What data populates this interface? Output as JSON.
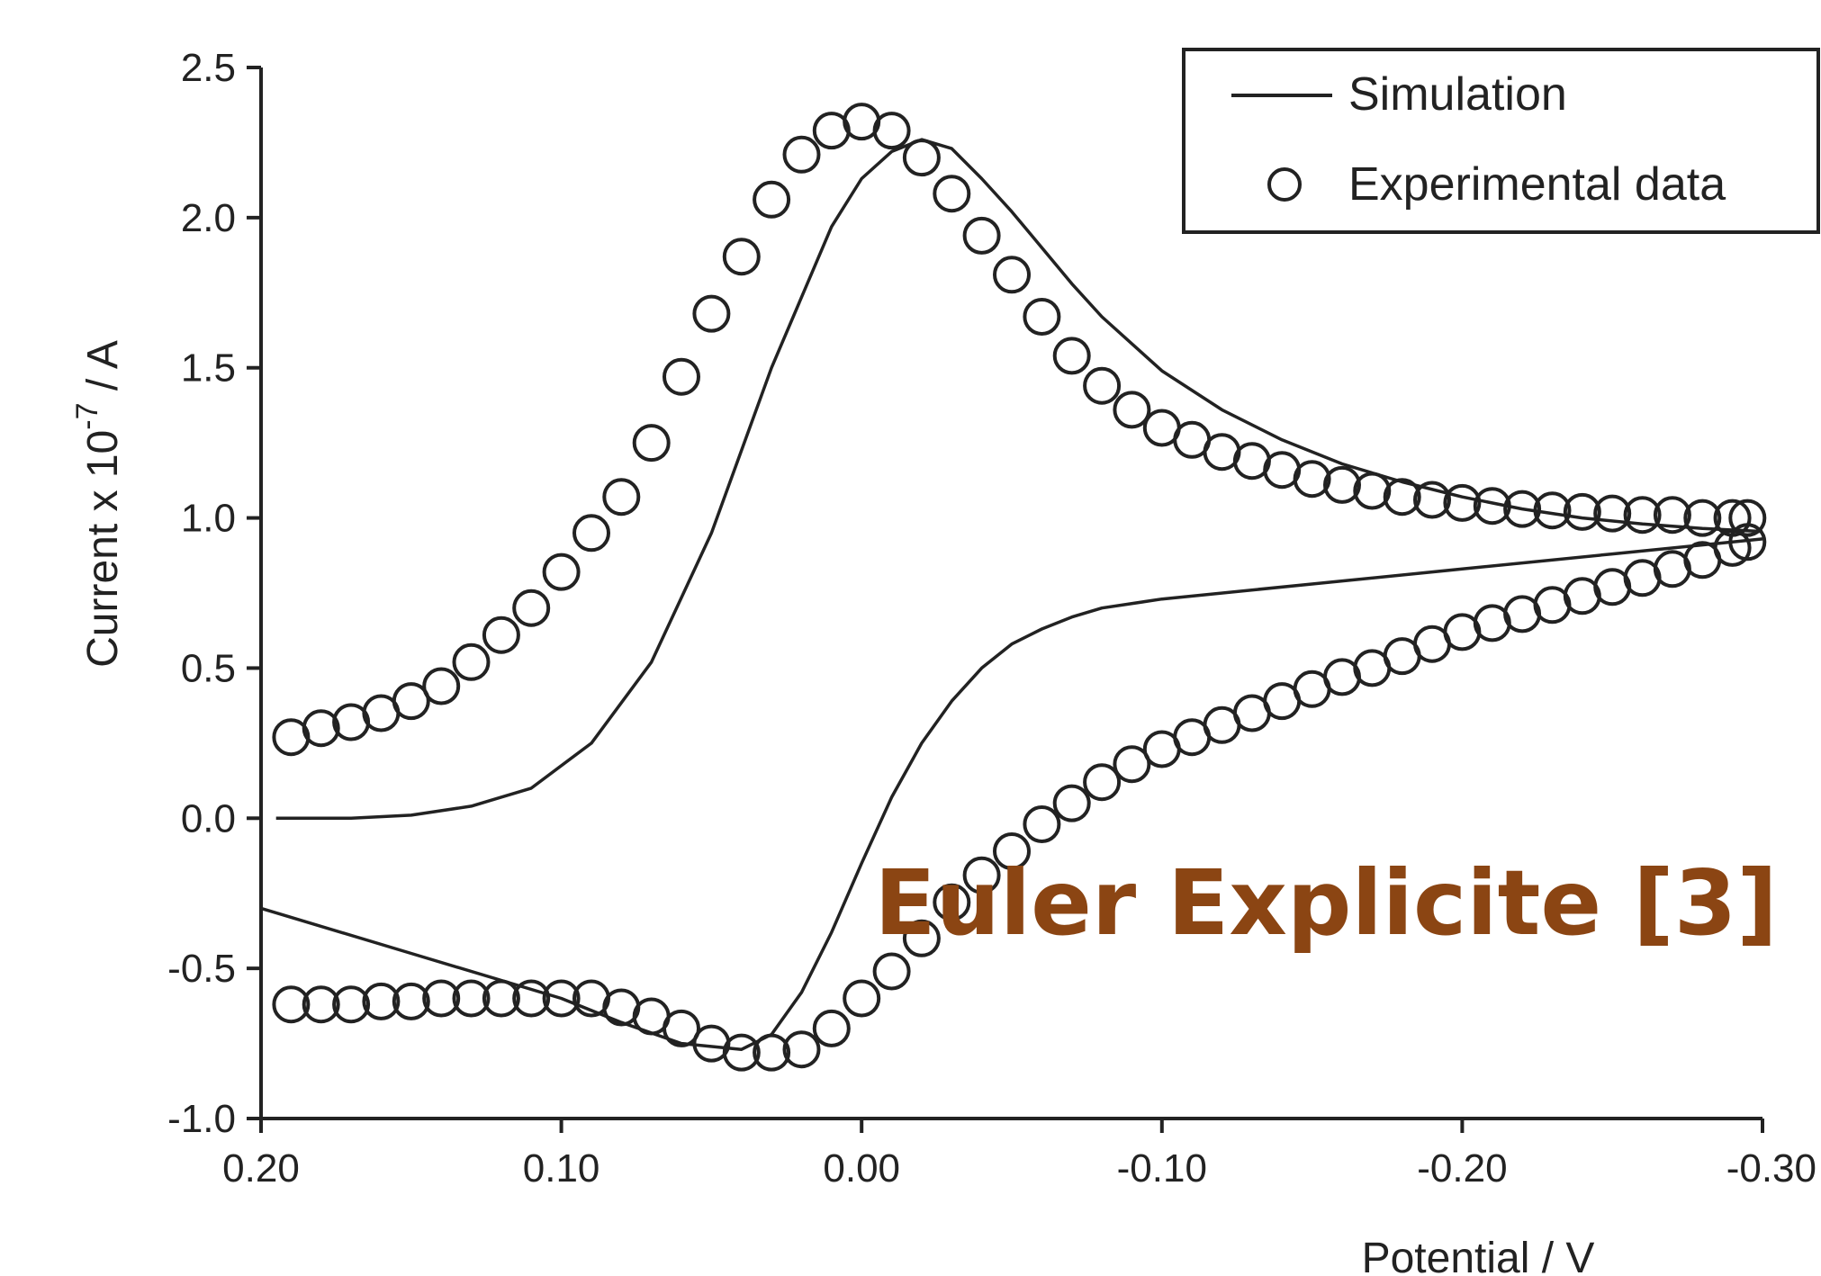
{
  "chart_data": {
    "type": "scatter",
    "xlabel": "Potential / V",
    "ylabel_prefix": "Current x 10",
    "ylabel_exp": "-7",
    "ylabel_suffix": " / A",
    "xlim": [
      0.2,
      -0.3
    ],
    "ylim": [
      -1.0,
      2.5
    ],
    "x_reversed": true,
    "x_ticks": [
      0.2,
      0.1,
      0.0,
      -0.1,
      -0.2,
      -0.3
    ],
    "x_tick_labels": [
      "0.20",
      "0.10",
      "0.00",
      "-0.10",
      "-0.20",
      "-0.30"
    ],
    "y_ticks": [
      -1.0,
      -0.5,
      0.0,
      0.5,
      1.0,
      1.5,
      2.0,
      2.5
    ],
    "y_tick_labels": [
      "-1.0",
      "-0.5",
      "0.0",
      "0.5",
      "1.0",
      "1.5",
      "2.0",
      "2.5"
    ],
    "grid": false,
    "legend_position": "top-right",
    "annotation": {
      "text": "Euler Explicite [3]",
      "color": "#8B4513"
    },
    "series": [
      {
        "name": "Simulation",
        "style": "line",
        "color": "#222222",
        "segments": [
          {
            "x": [
              0.195,
              0.17,
              0.15,
              0.13,
              0.11,
              0.09,
              0.07,
              0.05,
              0.03,
              0.01,
              0.0,
              -0.01,
              -0.02,
              -0.03,
              -0.04,
              -0.05,
              -0.06,
              -0.07,
              -0.08,
              -0.1,
              -0.12,
              -0.14,
              -0.16,
              -0.18,
              -0.2,
              -0.22,
              -0.24,
              -0.26,
              -0.28,
              -0.3
            ],
            "y": [
              0.0,
              0.0,
              0.01,
              0.04,
              0.1,
              0.25,
              0.52,
              0.95,
              1.5,
              1.97,
              2.13,
              2.22,
              2.26,
              2.23,
              2.13,
              2.02,
              1.9,
              1.78,
              1.67,
              1.49,
              1.36,
              1.26,
              1.18,
              1.12,
              1.07,
              1.03,
              1.0,
              0.98,
              0.965,
              0.955
            ]
          },
          {
            "x": [
              0.2,
              0.15,
              0.1,
              0.08,
              0.06,
              0.04,
              0.03,
              0.02,
              0.01,
              0.0,
              -0.01,
              -0.02,
              -0.03,
              -0.04,
              -0.05,
              -0.06,
              -0.07,
              -0.08,
              -0.1,
              -0.15,
              -0.2,
              -0.25,
              -0.3
            ],
            "y": [
              -0.3,
              -0.45,
              -0.6,
              -0.68,
              -0.75,
              -0.77,
              -0.72,
              -0.58,
              -0.38,
              -0.15,
              0.07,
              0.25,
              0.39,
              0.5,
              0.58,
              0.63,
              0.67,
              0.7,
              0.73,
              0.78,
              0.83,
              0.88,
              0.93
            ]
          }
        ]
      },
      {
        "name": "Experimental data",
        "style": "open-circle",
        "color": "#222222",
        "x": [
          0.19,
          0.18,
          0.17,
          0.16,
          0.15,
          0.14,
          0.13,
          0.12,
          0.11,
          0.1,
          0.09,
          0.08,
          0.07,
          0.06,
          0.05,
          0.04,
          0.03,
          0.02,
          0.01,
          0.0,
          -0.01,
          -0.02,
          -0.03,
          -0.04,
          -0.05,
          -0.06,
          -0.07,
          -0.08,
          -0.09,
          -0.1,
          -0.11,
          -0.12,
          -0.13,
          -0.14,
          -0.15,
          -0.16,
          -0.17,
          -0.18,
          -0.19,
          -0.2,
          -0.21,
          -0.22,
          -0.23,
          -0.24,
          -0.25,
          -0.26,
          -0.27,
          -0.28,
          -0.29,
          -0.295,
          -0.295,
          -0.29,
          -0.28,
          -0.27,
          -0.26,
          -0.25,
          -0.24,
          -0.23,
          -0.22,
          -0.21,
          -0.2,
          -0.19,
          -0.18,
          -0.17,
          -0.16,
          -0.15,
          -0.14,
          -0.13,
          -0.12,
          -0.11,
          -0.1,
          -0.09,
          -0.08,
          -0.07,
          -0.06,
          -0.05,
          -0.04,
          -0.03,
          -0.02,
          -0.01,
          0.0,
          0.01,
          0.02,
          0.03,
          0.04,
          0.05,
          0.06,
          0.07,
          0.08,
          0.09,
          0.1,
          0.11,
          0.12,
          0.13,
          0.14,
          0.15,
          0.16,
          0.17,
          0.18,
          0.19
        ],
        "y": [
          0.27,
          0.3,
          0.32,
          0.35,
          0.39,
          0.44,
          0.52,
          0.61,
          0.7,
          0.82,
          0.95,
          1.07,
          1.25,
          1.47,
          1.68,
          1.87,
          2.06,
          2.21,
          2.29,
          2.32,
          2.29,
          2.2,
          2.08,
          1.94,
          1.81,
          1.67,
          1.54,
          1.44,
          1.36,
          1.3,
          1.26,
          1.22,
          1.19,
          1.16,
          1.13,
          1.11,
          1.09,
          1.07,
          1.06,
          1.05,
          1.04,
          1.03,
          1.025,
          1.02,
          1.015,
          1.01,
          1.01,
          1.0,
          1.0,
          1.0,
          0.92,
          0.9,
          0.86,
          0.83,
          0.8,
          0.77,
          0.74,
          0.71,
          0.68,
          0.65,
          0.62,
          0.58,
          0.54,
          0.5,
          0.47,
          0.43,
          0.39,
          0.35,
          0.31,
          0.27,
          0.23,
          0.18,
          0.12,
          0.05,
          -0.02,
          -0.11,
          -0.19,
          -0.28,
          -0.4,
          -0.51,
          -0.6,
          -0.7,
          -0.77,
          -0.78,
          -0.78,
          -0.75,
          -0.7,
          -0.66,
          -0.63,
          -0.6,
          -0.6,
          -0.6,
          -0.6,
          -0.6,
          -0.6,
          -0.61,
          -0.61,
          -0.62,
          -0.62,
          -0.62
        ]
      }
    ]
  }
}
